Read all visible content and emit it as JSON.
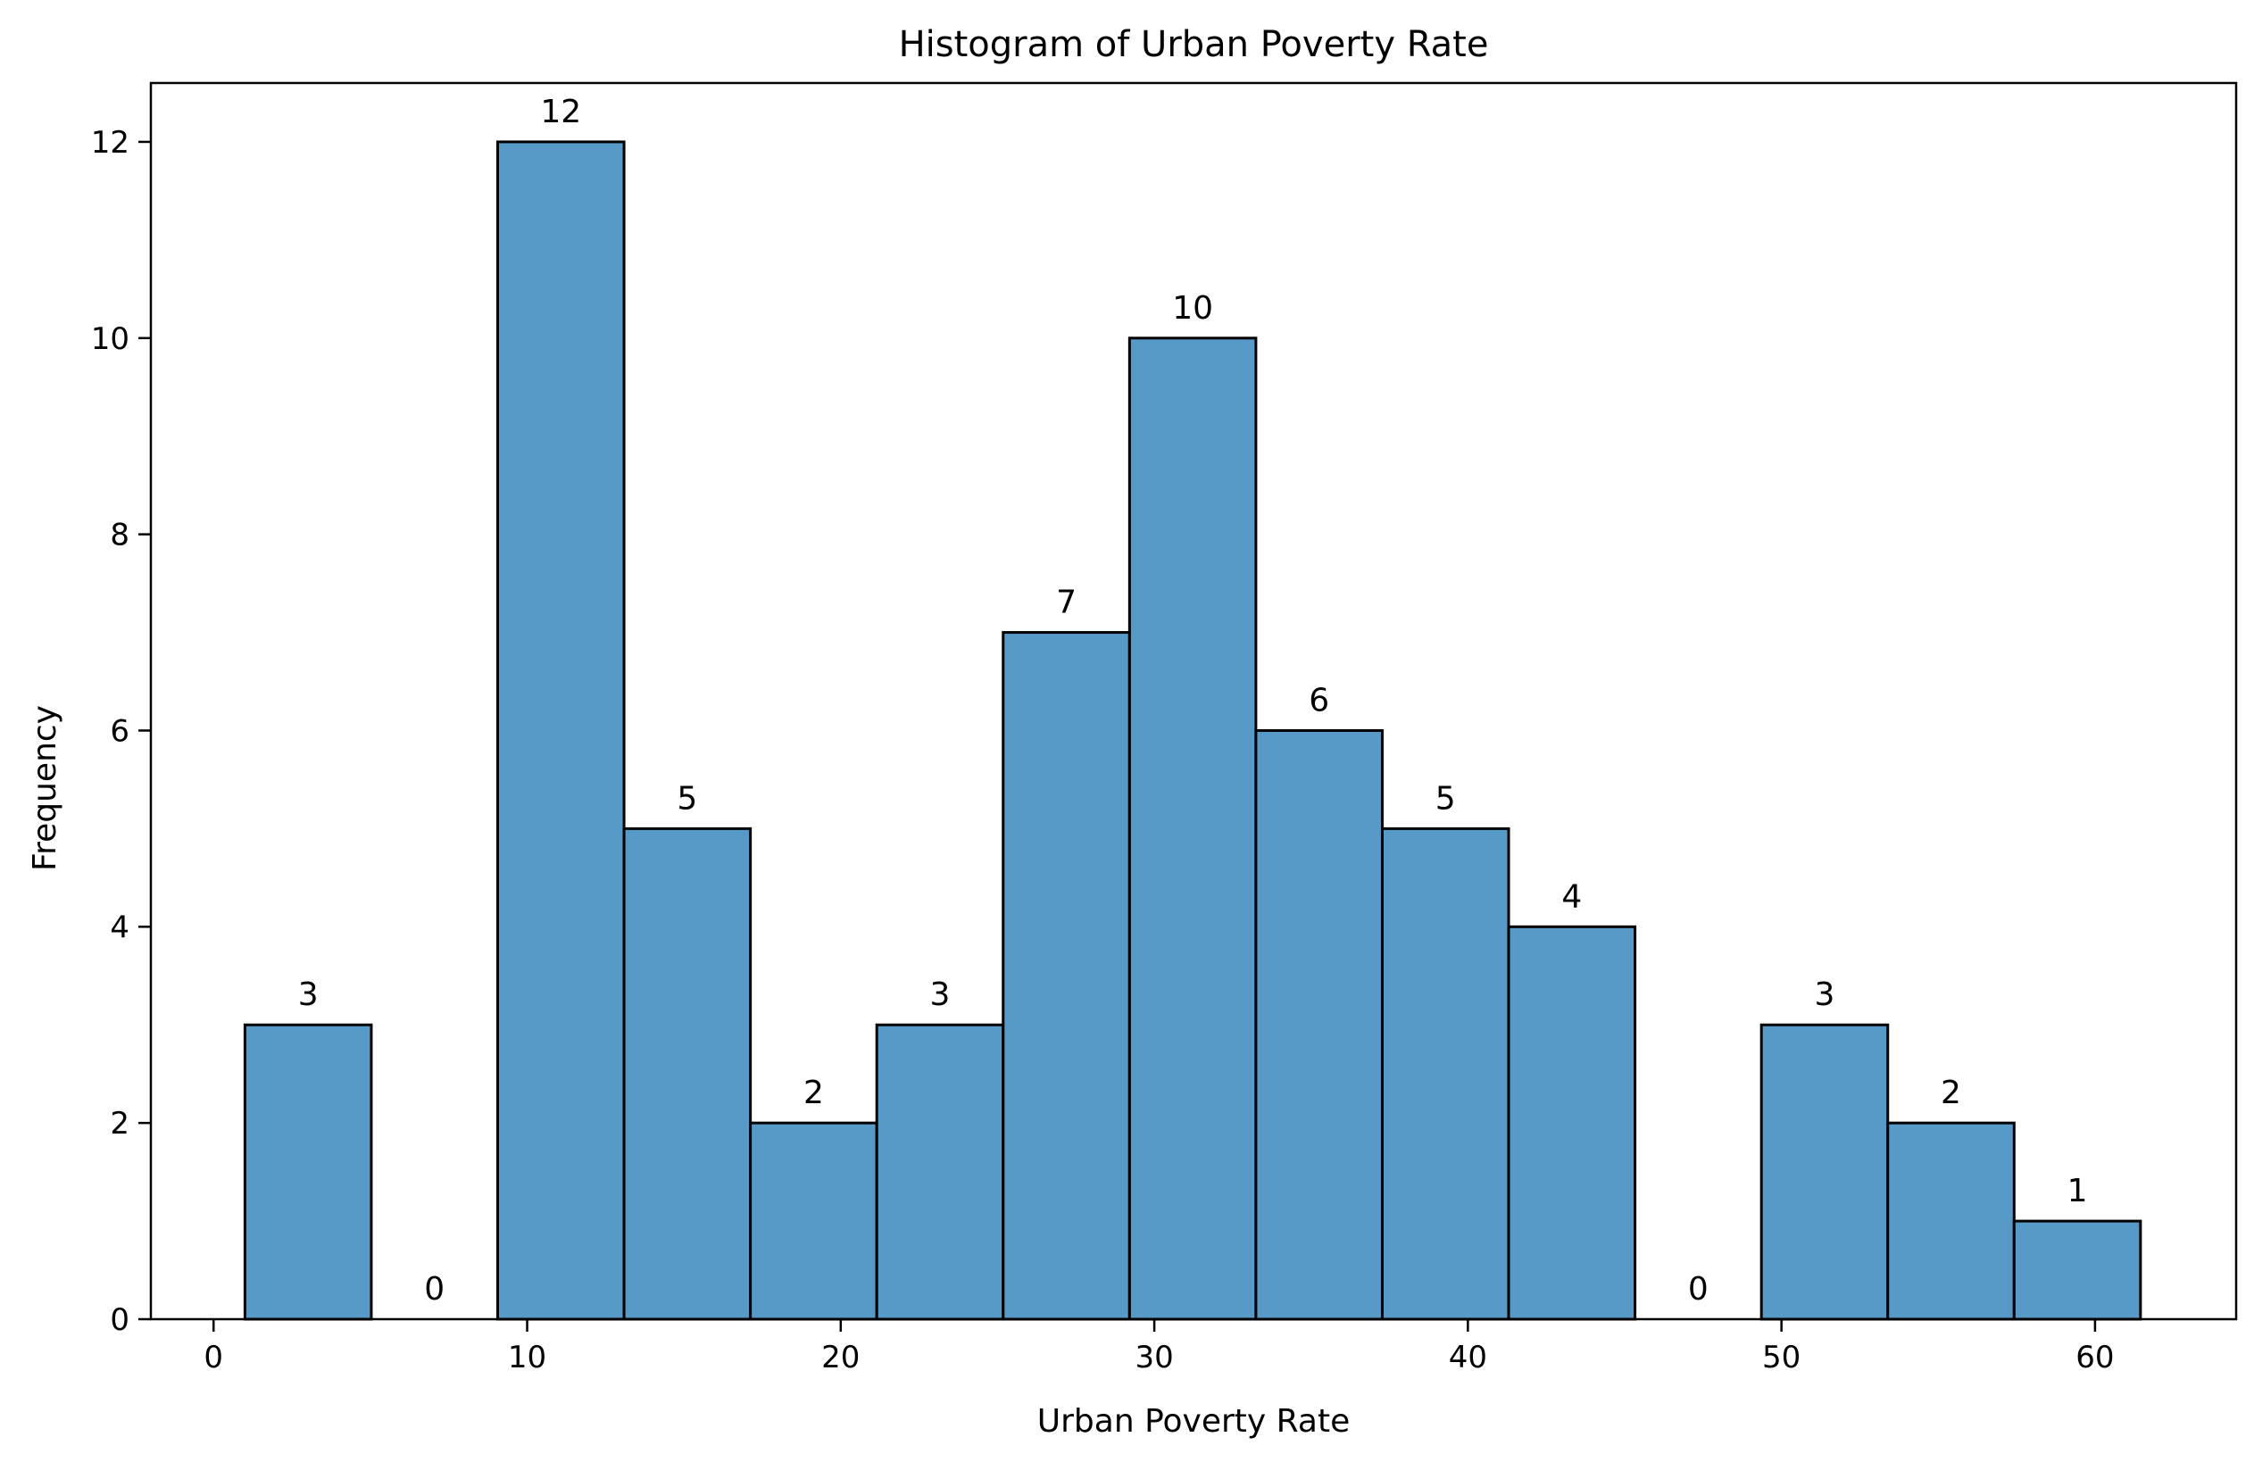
{
  "chart_data": {
    "type": "bar",
    "title": "Histogram of Urban Poverty Rate",
    "xlabel": "Urban Poverty Rate",
    "ylabel": "Frequency",
    "bin_edges": [
      1.0,
      5.03,
      9.06,
      13.09,
      17.12,
      21.15,
      25.18,
      29.21,
      33.24,
      37.27,
      41.3,
      45.33,
      49.36,
      53.39,
      57.42,
      61.45
    ],
    "values": [
      3,
      0,
      12,
      5,
      2,
      3,
      7,
      10,
      6,
      5,
      4,
      0,
      3,
      2,
      1
    ],
    "xlim": [
      -2.0,
      64.5
    ],
    "ylim": [
      0,
      12.6
    ],
    "xticks": [
      0,
      10,
      20,
      30,
      40,
      50,
      60
    ],
    "yticks": [
      0,
      2,
      4,
      6,
      8,
      10,
      12
    ],
    "grid": false,
    "bar_color": "#5799c7",
    "edge_color": "#000000"
  }
}
